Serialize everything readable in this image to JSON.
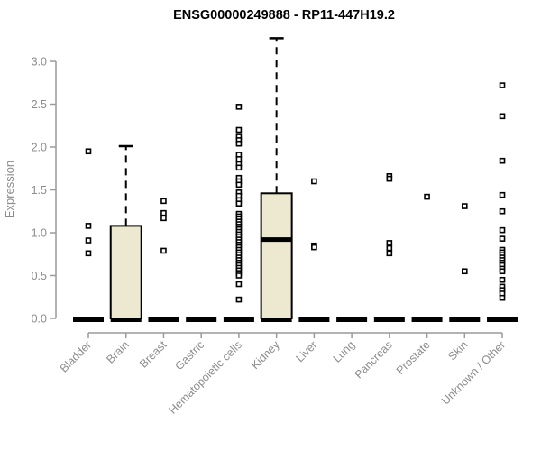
{
  "chart_data": {
    "type": "boxplot",
    "title": "ENSG00000249888 - RP11-447H19.2",
    "ylabel": "Expression",
    "xlabel": "",
    "ylim": [
      0,
      3.3
    ],
    "yticks": [
      0,
      0.5,
      1,
      1.5,
      2,
      2.5,
      3
    ],
    "grid": false,
    "legend": false,
    "categories": [
      "Bladder",
      "Brain",
      "Breast",
      "Gastric",
      "Hematopoietic cells",
      "Kidney",
      "Liver",
      "Lung",
      "Pancreas",
      "Prostate",
      "Skin",
      "Unknown / Other"
    ],
    "series": [
      {
        "category": "Bladder",
        "q1": 0,
        "median": 0,
        "q3": 0,
        "whisker_low": 0,
        "whisker_high": 0,
        "outliers": [
          1.95,
          1.08,
          0.91,
          0.76
        ]
      },
      {
        "category": "Brain",
        "q1": 0,
        "median": 0,
        "q3": 1.08,
        "whisker_low": 0,
        "whisker_high": 2.01,
        "outliers": []
      },
      {
        "category": "Breast",
        "q1": 0,
        "median": 0,
        "q3": 0,
        "whisker_low": 0,
        "whisker_high": 0,
        "outliers": [
          1.37,
          1.23,
          1.17,
          0.79
        ]
      },
      {
        "category": "Gastric",
        "q1": 0,
        "median": 0,
        "q3": 0,
        "whisker_low": 0,
        "whisker_high": 0,
        "outliers": []
      },
      {
        "category": "Hematopoietic cells",
        "q1": 0,
        "median": 0,
        "q3": 0,
        "whisker_low": 0,
        "whisker_high": 0,
        "outliers": [
          2.47,
          2.2,
          2.12,
          2.08,
          2.04,
          1.91,
          1.86,
          1.8,
          1.76,
          1.64,
          1.6,
          1.56,
          1.47,
          1.43,
          1.38,
          1.34,
          1.22,
          1.19,
          1.16,
          1.13,
          1.1,
          1.07,
          1.04,
          1.01,
          0.98,
          0.95,
          0.92,
          0.89,
          0.86,
          0.83,
          0.8,
          0.77,
          0.74,
          0.71,
          0.68,
          0.65,
          0.62,
          0.59,
          0.56,
          0.53,
          0.5,
          0.4,
          0.22
        ]
      },
      {
        "category": "Kidney",
        "q1": 0,
        "median": 0.92,
        "q3": 1.46,
        "whisker_low": 0,
        "whisker_high": 3.27,
        "outliers": []
      },
      {
        "category": "Liver",
        "q1": 0,
        "median": 0,
        "q3": 0,
        "whisker_low": 0,
        "whisker_high": 0,
        "outliers": [
          1.6,
          0.85,
          0.83
        ]
      },
      {
        "category": "Lung",
        "q1": 0,
        "median": 0,
        "q3": 0,
        "whisker_low": 0,
        "whisker_high": 0,
        "outliers": []
      },
      {
        "category": "Pancreas",
        "q1": 0,
        "median": 0,
        "q3": 0,
        "whisker_low": 0,
        "whisker_high": 0,
        "outliers": [
          1.66,
          1.63,
          0.88,
          0.82,
          0.76
        ]
      },
      {
        "category": "Prostate",
        "q1": 0,
        "median": 0,
        "q3": 0,
        "whisker_low": 0,
        "whisker_high": 0,
        "outliers": [
          1.42
        ]
      },
      {
        "category": "Skin",
        "q1": 0,
        "median": 0,
        "q3": 0,
        "whisker_low": 0,
        "whisker_high": 0,
        "outliers": [
          1.31,
          0.55
        ]
      },
      {
        "category": "Unknown / Other",
        "q1": 0,
        "median": 0,
        "q3": 0,
        "whisker_low": 0,
        "whisker_high": 0,
        "outliers": [
          2.72,
          2.36,
          1.84,
          1.44,
          1.25,
          1.03,
          0.93,
          0.8,
          0.77,
          0.74,
          0.71,
          0.68,
          0.65,
          0.62,
          0.58,
          0.55,
          0.45,
          0.37,
          0.33,
          0.29,
          0.24
        ]
      }
    ],
    "colors": {
      "box_fill": "#EDE8D0",
      "box_border": "#000000",
      "median": "#000000",
      "point_stroke": "#000000",
      "point_fill": "#FFFFFF",
      "axis_line": "#9A9A9A",
      "axis_text": "#8C8C8C",
      "title_text": "#000000",
      "background": "#FFFFFF"
    }
  }
}
